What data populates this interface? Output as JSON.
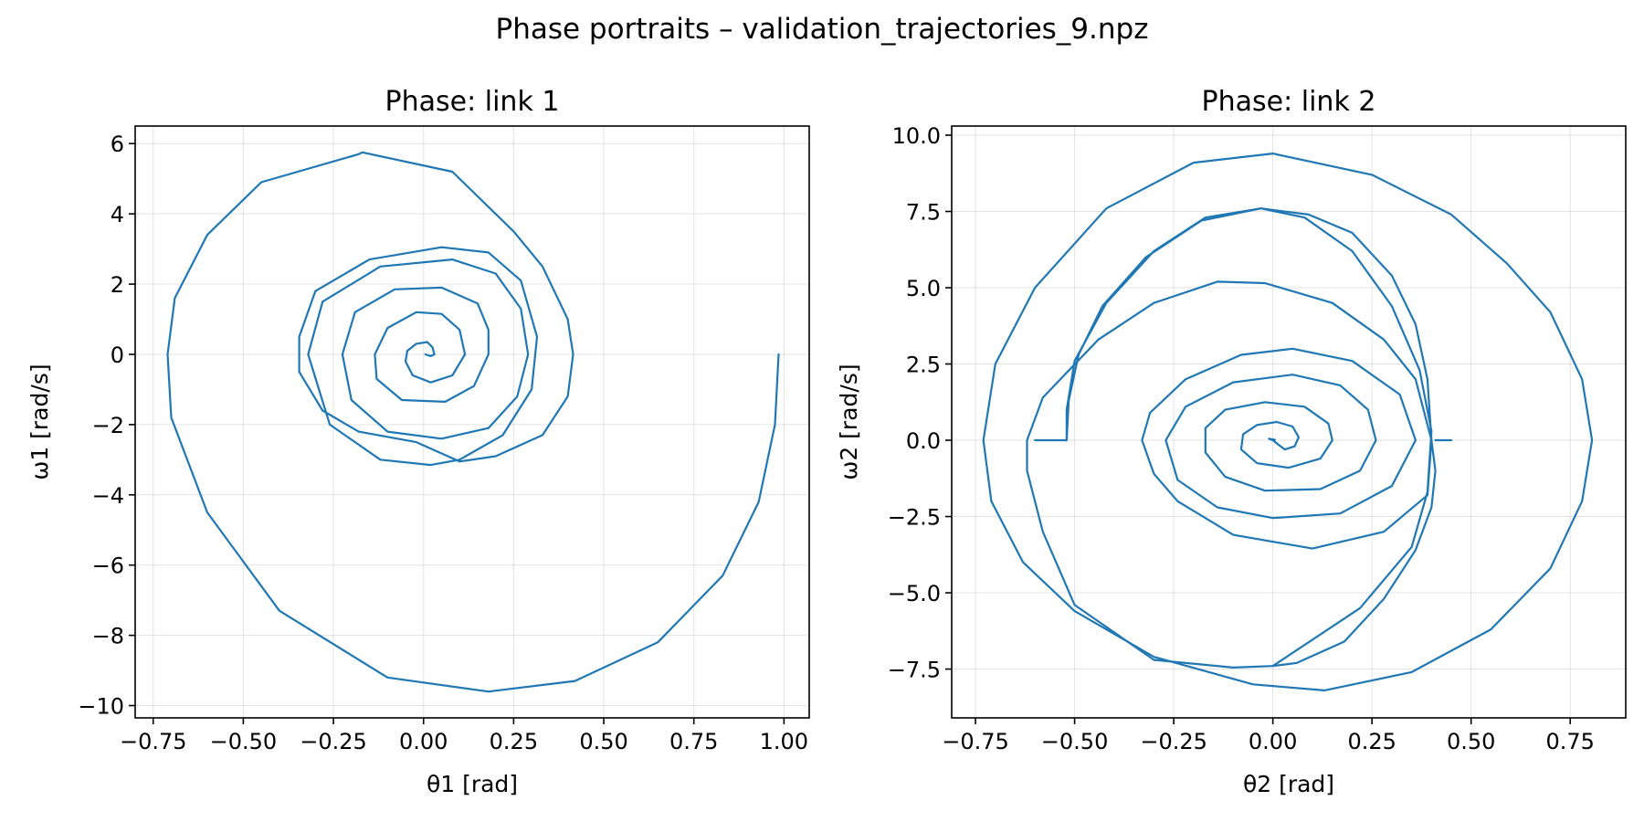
{
  "figure": {
    "suptitle": "Phase portraits – validation_trajectories_9.npz",
    "line_color": "#1f77b4",
    "grid": true
  },
  "chart_data": [
    {
      "type": "line",
      "title": "Phase: link 1",
      "xlabel": "θ1 [rad]",
      "ylabel": "ω1 [rad/s]",
      "xlim": [
        -0.8,
        1.07
      ],
      "ylim": [
        -10.35,
        6.5
      ],
      "xticks": [
        -0.75,
        -0.5,
        -0.25,
        0.0,
        0.25,
        0.5,
        0.75,
        1.0
      ],
      "xtick_labels": [
        "−0.75",
        "−0.50",
        "−0.25",
        "0.00",
        "0.25",
        "0.50",
        "0.75",
        "1.00"
      ],
      "yticks": [
        -10,
        -8,
        -6,
        -4,
        -2,
        0,
        2,
        4,
        6
      ],
      "ytick_labels": [
        "−10",
        "−8",
        "−6",
        "−4",
        "−2",
        "0",
        "2",
        "4",
        "6"
      ],
      "series": [
        {
          "points": [
            [
              0.985,
              0.0
            ],
            [
              0.975,
              -2.0
            ],
            [
              0.93,
              -4.2
            ],
            [
              0.83,
              -6.3
            ],
            [
              0.65,
              -8.2
            ],
            [
              0.42,
              -9.3
            ],
            [
              0.18,
              -9.6
            ],
            [
              -0.1,
              -9.2
            ],
            [
              -0.4,
              -7.3
            ],
            [
              -0.6,
              -4.5
            ],
            [
              -0.7,
              -1.8
            ],
            [
              -0.71,
              0.0
            ],
            [
              -0.69,
              1.6
            ],
            [
              -0.6,
              3.4
            ],
            [
              -0.45,
              4.9
            ],
            [
              -0.18,
              5.7
            ],
            [
              -0.17,
              5.75
            ],
            [
              0.08,
              5.2
            ],
            [
              0.25,
              3.5
            ],
            [
              0.33,
              2.5
            ],
            [
              0.4,
              1.0
            ],
            [
              0.415,
              0.0
            ],
            [
              0.4,
              -1.2
            ],
            [
              0.33,
              -2.3
            ],
            [
              0.2,
              -2.9
            ],
            [
              0.1,
              -3.05
            ],
            [
              -0.02,
              -2.5
            ],
            [
              -0.18,
              -2.2
            ],
            [
              -0.28,
              -1.6
            ],
            [
              -0.345,
              -0.5
            ],
            [
              -0.345,
              0.5
            ],
            [
              -0.3,
              1.8
            ],
            [
              -0.15,
              2.7
            ],
            [
              0.05,
              3.05
            ],
            [
              0.18,
              2.9
            ],
            [
              0.27,
              2.1
            ],
            [
              0.315,
              0.5
            ],
            [
              0.3,
              -1.0
            ],
            [
              0.22,
              -2.3
            ],
            [
              0.1,
              -3.0
            ],
            [
              0.02,
              -3.15
            ],
            [
              -0.12,
              -3.0
            ],
            [
              -0.26,
              -2.0
            ],
            [
              -0.32,
              0.0
            ],
            [
              -0.28,
              1.5
            ],
            [
              -0.12,
              2.5
            ],
            [
              0.08,
              2.7
            ],
            [
              0.2,
              2.3
            ],
            [
              0.27,
              1.3
            ],
            [
              0.29,
              0.0
            ],
            [
              0.26,
              -1.2
            ],
            [
              0.18,
              -2.1
            ],
            [
              0.05,
              -2.4
            ],
            [
              -0.1,
              -2.2
            ],
            [
              -0.2,
              -1.3
            ],
            [
              -0.225,
              0.0
            ],
            [
              -0.19,
              1.2
            ],
            [
              -0.08,
              1.85
            ],
            [
              0.05,
              1.9
            ],
            [
              0.15,
              1.45
            ],
            [
              0.18,
              0.7
            ],
            [
              0.18,
              0.0
            ],
            [
              0.14,
              -0.9
            ],
            [
              0.06,
              -1.35
            ],
            [
              -0.06,
              -1.3
            ],
            [
              -0.13,
              -0.7
            ],
            [
              -0.135,
              0.0
            ],
            [
              -0.1,
              0.75
            ],
            [
              -0.02,
              1.2
            ],
            [
              0.05,
              1.15
            ],
            [
              0.1,
              0.7
            ],
            [
              0.115,
              0.0
            ],
            [
              0.08,
              -0.6
            ],
            [
              0.02,
              -0.8
            ],
            [
              -0.03,
              -0.6
            ],
            [
              -0.05,
              -0.2
            ],
            [
              -0.045,
              0.1
            ],
            [
              -0.02,
              0.3
            ],
            [
              0.01,
              0.35
            ],
            [
              0.025,
              0.2
            ],
            [
              0.03,
              0.0
            ],
            [
              0.02,
              -0.05
            ],
            [
              0.005,
              0.0
            ]
          ]
        }
      ]
    },
    {
      "type": "line",
      "title": "Phase: link 2",
      "xlabel": "θ2 [rad]",
      "ylabel": "ω2 [rad/s]",
      "xlim": [
        -0.81,
        0.89
      ],
      "ylim": [
        -9.1,
        10.3
      ],
      "xticks": [
        -0.75,
        -0.5,
        -0.25,
        0.0,
        0.25,
        0.5,
        0.75
      ],
      "xtick_labels": [
        "−0.75",
        "−0.50",
        "−0.25",
        "0.00",
        "0.25",
        "0.50",
        "0.75"
      ],
      "yticks": [
        -7.5,
        -5.0,
        -2.5,
        0.0,
        2.5,
        5.0,
        7.5,
        10.0
      ],
      "ytick_labels": [
        "−7.5",
        "−5.0",
        "−2.5",
        "0.0",
        "2.5",
        "5.0",
        "7.5",
        "10.0"
      ],
      "series": [
        {
          "points": [
            [
              -0.52,
              0.0
            ],
            [
              -0.515,
              1.3
            ],
            [
              -0.49,
              2.8
            ],
            [
              -0.43,
              4.4
            ],
            [
              -0.32,
              6.0
            ],
            [
              -0.18,
              7.2
            ],
            [
              -0.03,
              7.6
            ],
            [
              0.08,
              7.3
            ],
            [
              0.2,
              6.2
            ],
            [
              0.3,
              4.4
            ],
            [
              0.37,
              2.3
            ],
            [
              0.4,
              0.3
            ],
            [
              0.39,
              -1.7
            ],
            [
              0.35,
              -3.5
            ],
            [
              0.22,
              -5.5
            ],
            [
              0.0,
              -7.4
            ],
            [
              -0.1,
              -7.45
            ],
            [
              -0.3,
              -7.2
            ],
            [
              -0.5,
              -5.4
            ],
            [
              -0.58,
              -3.0
            ],
            [
              -0.62,
              -1.0
            ],
            [
              -0.62,
              0.0
            ],
            [
              -0.58,
              1.4
            ],
            [
              -0.44,
              3.3
            ],
            [
              -0.3,
              4.5
            ],
            [
              -0.14,
              5.2
            ],
            [
              -0.02,
              5.15
            ],
            [
              0.15,
              4.5
            ],
            [
              0.28,
              3.3
            ],
            [
              0.36,
              2.0
            ],
            [
              0.4,
              0.0
            ],
            [
              0.39,
              -1.8
            ],
            [
              0.28,
              -3.0
            ],
            [
              0.1,
              -3.55
            ],
            [
              -0.1,
              -3.1
            ],
            [
              -0.24,
              -2.0
            ],
            [
              -0.3,
              -1.1
            ],
            [
              -0.33,
              0.0
            ],
            [
              -0.31,
              0.9
            ],
            [
              -0.22,
              2.0
            ],
            [
              -0.08,
              2.8
            ],
            [
              0.05,
              3.0
            ],
            [
              0.2,
              2.6
            ],
            [
              0.32,
              1.5
            ],
            [
              0.36,
              0.0
            ],
            [
              0.3,
              -1.5
            ],
            [
              0.17,
              -2.4
            ],
            [
              0.0,
              -2.55
            ],
            [
              -0.14,
              -2.2
            ],
            [
              -0.24,
              -1.3
            ],
            [
              -0.27,
              0.0
            ],
            [
              -0.22,
              1.1
            ],
            [
              -0.1,
              1.9
            ],
            [
              0.05,
              2.15
            ],
            [
              0.17,
              1.8
            ],
            [
              0.24,
              1.0
            ],
            [
              0.26,
              0.0
            ],
            [
              0.22,
              -1.0
            ],
            [
              0.12,
              -1.6
            ],
            [
              -0.02,
              -1.65
            ],
            [
              -0.12,
              -1.2
            ],
            [
              -0.17,
              -0.4
            ],
            [
              -0.17,
              0.4
            ],
            [
              -0.12,
              1.0
            ],
            [
              -0.02,
              1.25
            ],
            [
              0.08,
              1.1
            ],
            [
              0.14,
              0.55
            ],
            [
              0.15,
              0.0
            ],
            [
              0.12,
              -0.6
            ],
            [
              0.04,
              -0.9
            ],
            [
              -0.04,
              -0.75
            ],
            [
              -0.08,
              -0.3
            ],
            [
              -0.075,
              0.2
            ],
            [
              -0.04,
              0.5
            ],
            [
              0.01,
              0.6
            ],
            [
              0.05,
              0.45
            ],
            [
              0.065,
              0.1
            ],
            [
              0.055,
              -0.2
            ],
            [
              0.03,
              -0.3
            ],
            [
              0.015,
              -0.15
            ],
            [
              0.0,
              0.0
            ],
            [
              -0.01,
              0.05
            ],
            [
              0.005,
              0.02
            ]
          ]
        },
        {
          "points": [
            [
              0.4,
              0.0
            ],
            [
              0.39,
              2.0
            ],
            [
              0.36,
              3.8
            ],
            [
              0.3,
              5.4
            ],
            [
              0.2,
              6.8
            ],
            [
              0.09,
              7.4
            ],
            [
              -0.03,
              7.6
            ],
            [
              -0.17,
              7.3
            ],
            [
              -0.3,
              6.2
            ],
            [
              -0.42,
              4.5
            ],
            [
              -0.5,
              2.6
            ],
            [
              -0.52,
              1.0
            ],
            [
              -0.52,
              0.0
            ]
          ]
        },
        {
          "points": [
            [
              0.4,
              0.0
            ],
            [
              0.41,
              -1.0
            ],
            [
              0.4,
              -2.2
            ],
            [
              0.36,
              -3.6
            ],
            [
              0.28,
              -5.2
            ],
            [
              0.18,
              -6.6
            ],
            [
              0.06,
              -7.3
            ],
            [
              0.0,
              -7.4
            ]
          ]
        },
        {
          "points": [
            [
              0.41,
              0.0
            ],
            [
              0.45,
              0.0
            ]
          ]
        },
        {
          "points": [
            [
              -0.52,
              0.0
            ],
            [
              -0.6,
              0.0
            ]
          ]
        },
        {
          "points": [
            [
              0.59,
              5.8
            ],
            [
              0.45,
              7.4
            ],
            [
              0.25,
              8.7
            ],
            [
              0.0,
              9.4
            ],
            [
              -0.2,
              9.1
            ],
            [
              -0.42,
              7.6
            ],
            [
              -0.6,
              5.0
            ],
            [
              -0.7,
              2.5
            ],
            [
              -0.73,
              0.0
            ],
            [
              -0.71,
              -2.0
            ],
            [
              -0.63,
              -4.0
            ],
            [
              -0.5,
              -5.6
            ],
            [
              -0.3,
              -7.1
            ],
            [
              -0.05,
              -8.0
            ],
            [
              0.13,
              -8.2
            ],
            [
              0.35,
              -7.6
            ],
            [
              0.55,
              -6.2
            ],
            [
              0.7,
              -4.2
            ],
            [
              0.78,
              -2.0
            ],
            [
              0.805,
              0.0
            ],
            [
              0.78,
              2.0
            ],
            [
              0.7,
              4.2
            ],
            [
              0.59,
              5.8
            ]
          ]
        }
      ]
    }
  ]
}
